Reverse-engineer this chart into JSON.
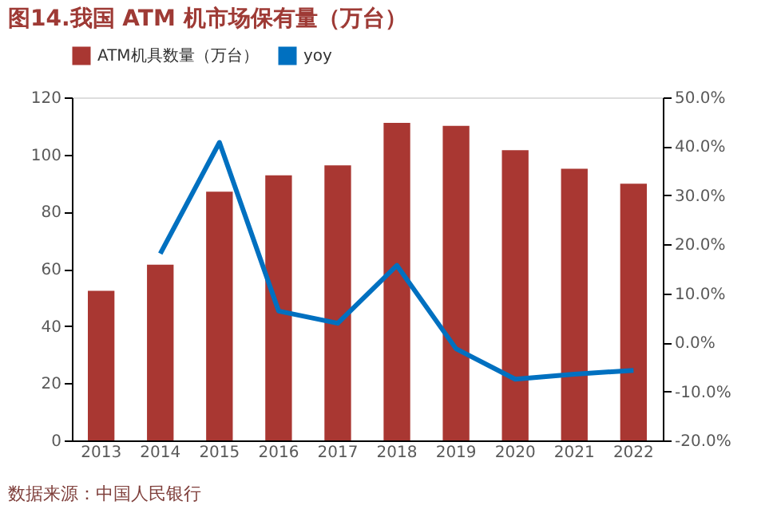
{
  "chart_data": {
    "type": "bar",
    "title": "图14.我国 ATM 机市场保有量（万台）",
    "categories": [
      "2013",
      "2014",
      "2015",
      "2016",
      "2017",
      "2018",
      "2019",
      "2020",
      "2021",
      "2022"
    ],
    "series": [
      {
        "name": "ATM机具数量（万台）",
        "color": "#a93732",
        "values": [
          52.3,
          61.5,
          87,
          92.7,
          96.2,
          111.1,
          110,
          101.5,
          95,
          89.8
        ]
      },
      {
        "name": "yoy",
        "type": "line",
        "axis": "y2",
        "color": "#0070c0",
        "values": [
          null,
          18.1,
          40.8,
          6.4,
          3.9,
          15.7,
          -1.3,
          -7.5,
          -6.5,
          -5.7
        ]
      }
    ],
    "ylim": [
      0,
      120
    ],
    "yticks": [
      0,
      20,
      40,
      60,
      80,
      100,
      120
    ],
    "y2lim": [
      -20,
      50
    ],
    "y2ticks": [
      {
        "value": -20,
        "label": "-20.0%"
      },
      {
        "value": -10,
        "label": "-10.0%"
      },
      {
        "value": 0,
        "label": "0.0%"
      },
      {
        "value": 10,
        "label": "10.0%"
      },
      {
        "value": 20,
        "label": "20.0%"
      },
      {
        "value": 30,
        "label": "30.0%"
      },
      {
        "value": 40,
        "label": "40.0%"
      },
      {
        "value": 50,
        "label": "50.0%"
      }
    ],
    "legend": "top",
    "grid": false,
    "annotations": [
      "数据来源：中国人民银行"
    ]
  }
}
